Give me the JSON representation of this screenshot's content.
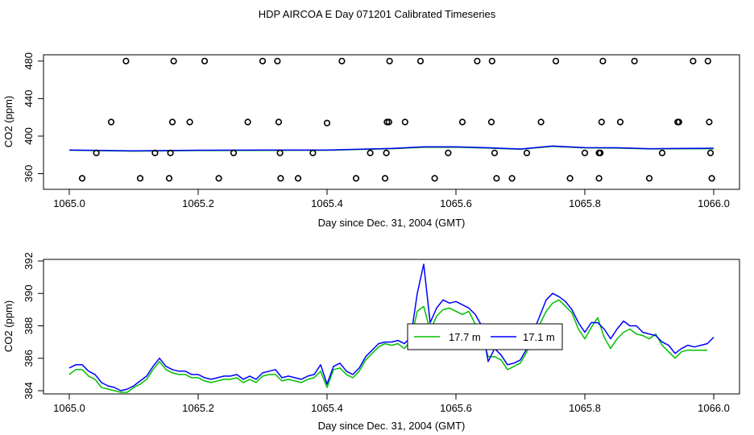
{
  "title": "HDP AIRCOA E  Day 071201  Calibrated Timeseries",
  "colors": {
    "series_17_7": "#00c000",
    "series_17_1": "#0000ff",
    "markers": "#000000"
  },
  "chart_data": [
    {
      "type": "scatter+line",
      "title": "",
      "xlabel": "Day since Dec. 31, 2004 (GMT)",
      "ylabel": "CO2 (ppm)",
      "xlim": [
        1065.0,
        1066.0
      ],
      "ylim": [
        345,
        485
      ],
      "x_ticks": [
        1065.0,
        1065.2,
        1065.4,
        1065.6,
        1065.8,
        1066.0
      ],
      "x_tick_labels": [
        "1065.0",
        "1065.2",
        "1065.4",
        "1065.6",
        "1065.8",
        "1066.0"
      ],
      "y_ticks": [
        360,
        400,
        440,
        480
      ],
      "y_tick_labels": [
        "360",
        "400",
        "440",
        "480"
      ],
      "calibration_points": [
        {
          "x": 1065.088,
          "y": 480
        },
        {
          "x": 1065.162,
          "y": 480
        },
        {
          "x": 1065.21,
          "y": 480
        },
        {
          "x": 1065.3,
          "y": 480
        },
        {
          "x": 1065.323,
          "y": 480
        },
        {
          "x": 1065.423,
          "y": 480
        },
        {
          "x": 1065.497,
          "y": 480
        },
        {
          "x": 1065.545,
          "y": 480
        },
        {
          "x": 1065.633,
          "y": 480
        },
        {
          "x": 1065.656,
          "y": 480
        },
        {
          "x": 1065.755,
          "y": 480
        },
        {
          "x": 1065.828,
          "y": 480
        },
        {
          "x": 1065.877,
          "y": 480
        },
        {
          "x": 1065.968,
          "y": 480
        },
        {
          "x": 1065.991,
          "y": 480
        },
        {
          "x": 1065.065,
          "y": 415
        },
        {
          "x": 1065.16,
          "y": 415
        },
        {
          "x": 1065.187,
          "y": 415
        },
        {
          "x": 1065.277,
          "y": 415
        },
        {
          "x": 1065.325,
          "y": 415
        },
        {
          "x": 1065.4,
          "y": 414
        },
        {
          "x": 1065.493,
          "y": 415
        },
        {
          "x": 1065.496,
          "y": 415
        },
        {
          "x": 1065.521,
          "y": 415
        },
        {
          "x": 1065.61,
          "y": 415
        },
        {
          "x": 1065.655,
          "y": 415
        },
        {
          "x": 1065.732,
          "y": 415
        },
        {
          "x": 1065.826,
          "y": 415
        },
        {
          "x": 1065.855,
          "y": 415
        },
        {
          "x": 1065.944,
          "y": 415
        },
        {
          "x": 1065.946,
          "y": 415
        },
        {
          "x": 1065.993,
          "y": 415
        },
        {
          "x": 1065.042,
          "y": 382
        },
        {
          "x": 1065.133,
          "y": 382
        },
        {
          "x": 1065.157,
          "y": 382
        },
        {
          "x": 1065.255,
          "y": 382
        },
        {
          "x": 1065.327,
          "y": 382
        },
        {
          "x": 1065.378,
          "y": 382
        },
        {
          "x": 1065.467,
          "y": 382
        },
        {
          "x": 1065.492,
          "y": 382
        },
        {
          "x": 1065.588,
          "y": 382
        },
        {
          "x": 1065.66,
          "y": 382
        },
        {
          "x": 1065.71,
          "y": 382
        },
        {
          "x": 1065.8,
          "y": 382
        },
        {
          "x": 1065.822,
          "y": 382
        },
        {
          "x": 1065.824,
          "y": 382
        },
        {
          "x": 1065.92,
          "y": 382
        },
        {
          "x": 1065.995,
          "y": 382
        },
        {
          "x": 1065.02,
          "y": 355
        },
        {
          "x": 1065.11,
          "y": 355
        },
        {
          "x": 1065.155,
          "y": 355
        },
        {
          "x": 1065.232,
          "y": 355
        },
        {
          "x": 1065.328,
          "y": 355
        },
        {
          "x": 1065.355,
          "y": 355
        },
        {
          "x": 1065.445,
          "y": 355
        },
        {
          "x": 1065.49,
          "y": 355
        },
        {
          "x": 1065.567,
          "y": 355
        },
        {
          "x": 1065.663,
          "y": 355
        },
        {
          "x": 1065.687,
          "y": 355
        },
        {
          "x": 1065.777,
          "y": 355
        },
        {
          "x": 1065.822,
          "y": 355
        },
        {
          "x": 1065.9,
          "y": 355
        },
        {
          "x": 1065.997,
          "y": 355
        }
      ],
      "series": [
        {
          "name": "17.7 m",
          "color": "#00c000",
          "x": [
            1065.0,
            1065.1,
            1065.2,
            1065.3,
            1065.4,
            1065.5,
            1065.55,
            1065.6,
            1065.65,
            1065.7,
            1065.75,
            1065.8,
            1065.85,
            1065.9,
            1065.95,
            1066.0
          ],
          "values": [
            384.9,
            384.0,
            384.6,
            384.8,
            384.9,
            386.6,
            388.0,
            388.2,
            387.2,
            386.0,
            389.0,
            387.4,
            387.2,
            386.3,
            386.4,
            386.6
          ]
        },
        {
          "name": "17.1 m",
          "color": "#0000ff",
          "x": [
            1065.0,
            1065.1,
            1065.2,
            1065.3,
            1065.4,
            1065.5,
            1065.55,
            1065.6,
            1065.65,
            1065.7,
            1065.75,
            1065.8,
            1065.85,
            1065.9,
            1065.95,
            1066.0
          ],
          "values": [
            385.1,
            384.3,
            384.9,
            385.1,
            385.2,
            386.8,
            388.6,
            388.6,
            387.6,
            386.2,
            389.4,
            387.7,
            387.6,
            386.6,
            386.9,
            387.1
          ]
        }
      ]
    },
    {
      "type": "line",
      "title": "",
      "xlabel": "Day since Dec. 31, 2004 (GMT)",
      "ylabel": "CO2 (ppm)",
      "xlim": [
        1065.0,
        1066.0
      ],
      "ylim": [
        383.9,
        392.0
      ],
      "x_ticks": [
        1065.0,
        1065.2,
        1065.4,
        1065.6,
        1065.8,
        1066.0
      ],
      "x_tick_labels": [
        "1065.0",
        "1065.2",
        "1065.4",
        "1065.6",
        "1065.8",
        "1066.0"
      ],
      "y_ticks": [
        384,
        386,
        388,
        390,
        392
      ],
      "y_tick_labels": [
        "384",
        "386",
        "388",
        "390",
        "392"
      ],
      "legend": {
        "placement": "center",
        "entries": [
          "17.7 m",
          "17.1 m"
        ]
      },
      "series": [
        {
          "name": "17.7 m",
          "color": "#00c000",
          "x": [
            1065.0,
            1065.01,
            1065.02,
            1065.03,
            1065.04,
            1065.05,
            1065.06,
            1065.07,
            1065.08,
            1065.09,
            1065.1,
            1065.11,
            1065.12,
            1065.13,
            1065.14,
            1065.15,
            1065.16,
            1065.17,
            1065.18,
            1065.19,
            1065.2,
            1065.21,
            1065.22,
            1065.23,
            1065.24,
            1065.25,
            1065.26,
            1065.27,
            1065.28,
            1065.29,
            1065.3,
            1065.31,
            1065.32,
            1065.33,
            1065.34,
            1065.35,
            1065.36,
            1065.37,
            1065.38,
            1065.39,
            1065.4,
            1065.41,
            1065.42,
            1065.43,
            1065.44,
            1065.45,
            1065.46,
            1065.47,
            1065.48,
            1065.49,
            1065.5,
            1065.51,
            1065.52,
            1065.53,
            1065.54,
            1065.55,
            1065.56,
            1065.57,
            1065.58,
            1065.59,
            1065.6,
            1065.61,
            1065.62,
            1065.63,
            1065.64,
            1065.65,
            1065.66,
            1065.67,
            1065.68,
            1065.69,
            1065.7,
            1065.71,
            1065.72,
            1065.73,
            1065.74,
            1065.75,
            1065.76,
            1065.77,
            1065.78,
            1065.79,
            1065.8,
            1065.81,
            1065.82,
            1065.83,
            1065.84,
            1065.85,
            1065.86,
            1065.87,
            1065.88,
            1065.89,
            1065.9,
            1065.91,
            1065.92,
            1065.93,
            1065.94,
            1065.95,
            1065.96,
            1065.97,
            1065.98,
            1065.99
          ],
          "values": [
            385.0,
            385.3,
            385.3,
            384.9,
            384.7,
            384.2,
            384.1,
            384.0,
            383.9,
            383.9,
            384.2,
            384.4,
            384.7,
            385.3,
            385.8,
            385.3,
            385.1,
            385.0,
            385.0,
            384.8,
            384.8,
            384.6,
            384.5,
            384.6,
            384.7,
            384.7,
            384.8,
            384.5,
            384.7,
            384.5,
            384.9,
            385.0,
            385.0,
            384.6,
            384.7,
            384.6,
            384.5,
            384.7,
            384.8,
            385.2,
            384.2,
            385.3,
            385.4,
            385.0,
            384.8,
            385.2,
            385.9,
            386.3,
            386.7,
            386.9,
            386.8,
            386.9,
            386.6,
            387.1,
            388.9,
            389.2,
            387.7,
            388.6,
            389.0,
            389.1,
            388.9,
            388.7,
            388.9,
            388.1,
            387.5,
            386.1,
            386.1,
            385.9,
            385.3,
            385.5,
            385.7,
            386.4,
            387.2,
            388.1,
            388.9,
            389.4,
            389.6,
            389.2,
            388.8,
            387.8,
            387.2,
            387.9,
            388.5,
            387.3,
            386.6,
            387.2,
            387.6,
            387.8,
            387.5,
            387.4,
            387.2,
            387.5,
            386.8,
            386.4,
            386.0,
            386.4,
            386.5,
            386.5,
            386.5,
            386.5
          ]
        },
        {
          "name": "17.1 m",
          "color": "#0000ff",
          "x": [
            1065.0,
            1065.01,
            1065.02,
            1065.03,
            1065.04,
            1065.05,
            1065.06,
            1065.07,
            1065.08,
            1065.09,
            1065.1,
            1065.11,
            1065.12,
            1065.13,
            1065.14,
            1065.15,
            1065.16,
            1065.17,
            1065.18,
            1065.19,
            1065.2,
            1065.21,
            1065.22,
            1065.23,
            1065.24,
            1065.25,
            1065.26,
            1065.27,
            1065.28,
            1065.29,
            1065.3,
            1065.31,
            1065.32,
            1065.33,
            1065.34,
            1065.35,
            1065.36,
            1065.37,
            1065.38,
            1065.39,
            1065.4,
            1065.41,
            1065.42,
            1065.43,
            1065.44,
            1065.45,
            1065.46,
            1065.47,
            1065.48,
            1065.49,
            1065.5,
            1065.51,
            1065.52,
            1065.53,
            1065.54,
            1065.55,
            1065.56,
            1065.57,
            1065.58,
            1065.59,
            1065.6,
            1065.61,
            1065.62,
            1065.63,
            1065.64,
            1065.65,
            1065.66,
            1065.67,
            1065.68,
            1065.69,
            1065.7,
            1065.71,
            1065.72,
            1065.73,
            1065.74,
            1065.75,
            1065.76,
            1065.77,
            1065.78,
            1065.79,
            1065.8,
            1065.81,
            1065.82,
            1065.83,
            1065.84,
            1065.85,
            1065.86,
            1065.87,
            1065.88,
            1065.89,
            1065.9,
            1065.91,
            1065.92,
            1065.93,
            1065.94,
            1065.95,
            1065.96,
            1065.97,
            1065.98,
            1065.99,
            1066.0
          ],
          "values": [
            385.4,
            385.6,
            385.6,
            385.2,
            385.0,
            384.5,
            384.3,
            384.2,
            384.0,
            384.1,
            384.3,
            384.6,
            384.9,
            385.5,
            386.0,
            385.5,
            385.3,
            385.2,
            385.2,
            385.0,
            385.0,
            384.8,
            384.7,
            384.8,
            384.9,
            384.9,
            385.0,
            384.7,
            384.9,
            384.7,
            385.1,
            385.2,
            385.3,
            384.8,
            384.9,
            384.8,
            384.7,
            384.9,
            385.0,
            385.6,
            384.4,
            385.5,
            385.7,
            385.2,
            385.0,
            385.4,
            386.1,
            386.5,
            386.9,
            387.0,
            387.0,
            387.1,
            386.9,
            387.3,
            390.0,
            391.8,
            388.2,
            389.1,
            389.6,
            389.4,
            389.5,
            389.3,
            389.1,
            388.7,
            388.0,
            385.8,
            386.6,
            386.2,
            385.6,
            385.7,
            385.9,
            386.6,
            387.6,
            388.6,
            389.6,
            390.0,
            389.8,
            389.5,
            389.0,
            388.2,
            387.6,
            388.2,
            388.2,
            387.8,
            387.2,
            387.8,
            388.3,
            388.0,
            388.0,
            387.6,
            387.5,
            387.4,
            387.0,
            386.8,
            386.3,
            386.6,
            386.8,
            386.7,
            386.8,
            386.9,
            387.3
          ]
        }
      ]
    }
  ]
}
